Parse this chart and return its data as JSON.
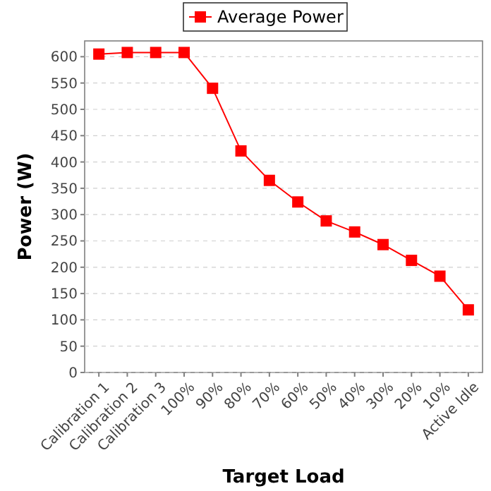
{
  "chart_data": {
    "type": "line",
    "xlabel": "Target Load",
    "ylabel": "Power (W)",
    "categories": [
      "Calibration 1",
      "Calibration 2",
      "Calibration 3",
      "100%",
      "90%",
      "80%",
      "70%",
      "60%",
      "50%",
      "40%",
      "30%",
      "20%",
      "10%",
      "Active Idle"
    ],
    "series": [
      {
        "name": "Average Power",
        "color": "#ff0000",
        "values": [
          605,
          608,
          608,
          608,
          540,
          421,
          365,
          324,
          288,
          267,
          243,
          213,
          183,
          119
        ]
      }
    ],
    "ylim": [
      0,
      630
    ],
    "yticks": [
      0,
      50,
      100,
      150,
      200,
      250,
      300,
      350,
      400,
      450,
      500,
      550,
      600
    ],
    "grid": "y",
    "legend": "top",
    "marker": "square",
    "line_style": "solid"
  }
}
